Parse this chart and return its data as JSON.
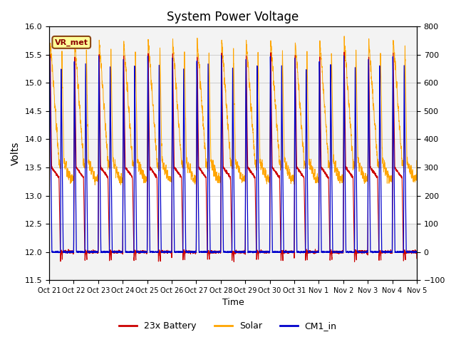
{
  "title": "System Power Voltage",
  "xlabel": "Time",
  "ylabel_left": "Volts",
  "ylim_left": [
    11.5,
    16.0
  ],
  "ylim_right": [
    -100,
    800
  ],
  "yticks_left": [
    11.5,
    12.0,
    12.5,
    13.0,
    13.5,
    14.0,
    14.5,
    15.0,
    15.5,
    16.0
  ],
  "yticks_right": [
    -100,
    0,
    100,
    200,
    300,
    400,
    500,
    600,
    700,
    800
  ],
  "x_tick_labels": [
    "Oct 21",
    "Oct 22",
    "Oct 23",
    "Oct 24",
    "Oct 25",
    "Oct 26",
    "Oct 27",
    "Oct 28",
    "Oct 29",
    "Oct 30",
    "Oct 31",
    "Nov 1",
    "Nov 2",
    "Nov 3",
    "Nov 4",
    "Nov 5"
  ],
  "annotation_text": "VR_met",
  "color_battery": "#CC0000",
  "color_solar": "#FFA500",
  "color_cm1": "#0000CC",
  "color_bg_band": "#D3D3D3",
  "legend_labels": [
    "23x Battery",
    "Solar",
    "CM1_in"
  ],
  "total_days": 15,
  "n_points": 4000
}
